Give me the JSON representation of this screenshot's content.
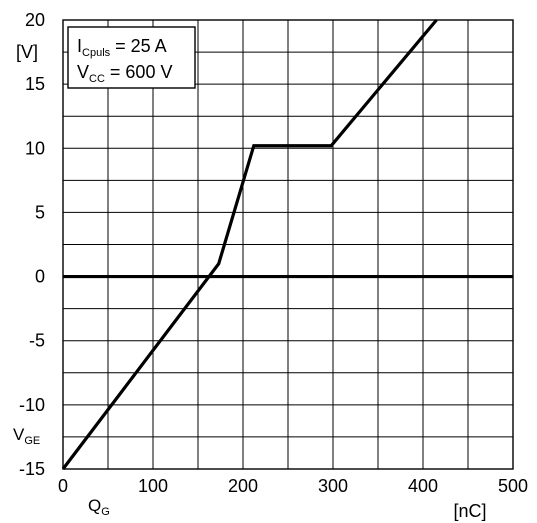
{
  "chart_data": {
    "type": "line",
    "x": [
      0,
      173,
      212,
      298,
      415
    ],
    "series": [
      {
        "values": [
          -15,
          1,
          10.2,
          10.2,
          20
        ]
      }
    ],
    "xlim": [
      0,
      500
    ],
    "ylim": [
      -15,
      20
    ],
    "x_ticks": [
      0,
      100,
      200,
      300,
      400,
      500
    ],
    "y_ticks": [
      20,
      15,
      10,
      5,
      0,
      -5,
      -10,
      -15
    ],
    "x_minor_grid_step": 50,
    "y_minor_grid_step": 2.5,
    "grid": true,
    "zero_line": true,
    "y_unit": "[V]",
    "x_unit": "[nC]",
    "xlabel": {
      "main": "Q",
      "sub": "G"
    },
    "ylabel": {
      "main": "V",
      "sub": "GE"
    },
    "legend": {
      "placement": "top-left",
      "line1": {
        "main": "I",
        "sub": "Cpuls",
        "rest": " = 25 A"
      },
      "line2": {
        "main": "V",
        "sub": "CC",
        "rest": "  = 600 V"
      }
    },
    "line_color": "#000000",
    "grid_color": "#000000"
  }
}
